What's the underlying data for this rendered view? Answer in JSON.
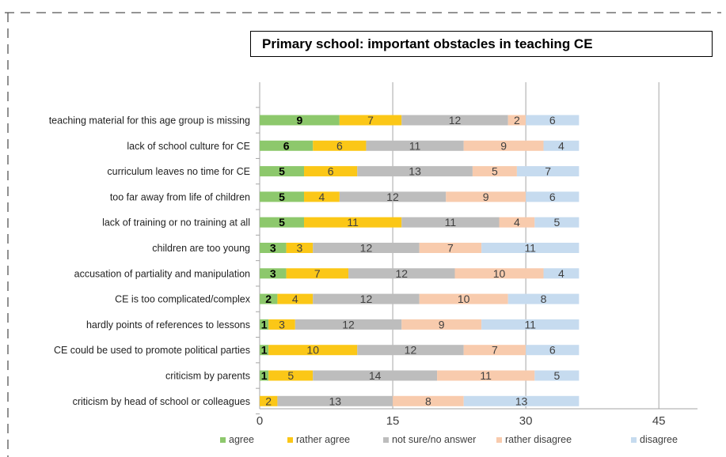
{
  "chart_data": {
    "type": "bar",
    "orientation": "horizontal",
    "stacked": true,
    "title": "Primary school: important obstacles in teaching CE",
    "xlabel": "",
    "ylabel": "",
    "xlim": [
      0,
      49
    ],
    "xticks": [
      0,
      15,
      30,
      45
    ],
    "grid": true,
    "legend_position": "bottom",
    "categories": [
      "teaching material for this age group is missing",
      "lack of school culture for CE",
      "curriculum leaves no time for CE",
      "too far away from life of children",
      "lack of training or no training at all",
      "children are too young",
      "accusation of partiality and manipulation",
      "CE is too complicated/complex",
      "hardly points of references to lessons",
      "CE could be used to promote political parties",
      "criticism by parents",
      "criticism by head of school or colleagues"
    ],
    "series": [
      {
        "name": "agree",
        "color": "#8dc86c",
        "values": [
          9,
          6,
          5,
          5,
          5,
          3,
          3,
          2,
          1,
          1,
          1,
          0
        ]
      },
      {
        "name": "rather agree",
        "color": "#fbc717",
        "values": [
          7,
          6,
          6,
          4,
          11,
          3,
          7,
          4,
          3,
          10,
          5,
          2
        ]
      },
      {
        "name": "not sure/no answer",
        "color": "#bdbdbd",
        "values": [
          12,
          11,
          13,
          12,
          11,
          12,
          12,
          12,
          12,
          12,
          14,
          13
        ]
      },
      {
        "name": "rather disagree",
        "color": "#f8cbad",
        "values": [
          2,
          9,
          5,
          9,
          4,
          7,
          10,
          10,
          9,
          7,
          11,
          8
        ]
      },
      {
        "name": "disagree",
        "color": "#c6dbef",
        "values": [
          6,
          4,
          7,
          6,
          5,
          11,
          4,
          8,
          11,
          6,
          5,
          13
        ]
      }
    ]
  }
}
